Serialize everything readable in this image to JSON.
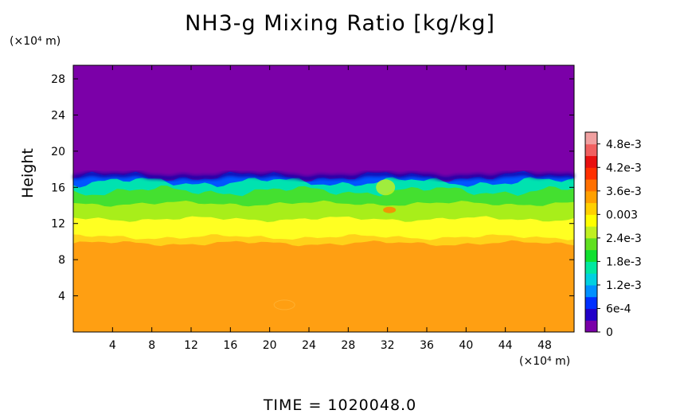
{
  "chart_data": {
    "type": "heatmap",
    "title": "NH3-g Mixing Ratio [kg/kg]",
    "ylabel": "Height",
    "y_unit": "(×10⁴ m)",
    "x_unit": "(×10⁴ m)",
    "x_ticks": [
      4,
      8,
      12,
      16,
      20,
      24,
      28,
      32,
      36,
      40,
      44,
      48
    ],
    "y_ticks": [
      4,
      8,
      12,
      16,
      20,
      24,
      28
    ],
    "xlim": [
      0,
      51
    ],
    "ylim": [
      0,
      29.5
    ],
    "colorbar": {
      "range": [
        0,
        0.0051
      ],
      "labels": [
        "4.8e-3",
        "4.2e-3",
        "3.6e-3",
        "0.003",
        "2.4e-3",
        "1.8e-3",
        "1.2e-3",
        "6e-4",
        "0"
      ],
      "label_values": [
        0.0048,
        0.0042,
        0.0036,
        0.003,
        0.0024,
        0.0018,
        0.0012,
        0.0006,
        0
      ],
      "colors": [
        "#7a00a8",
        "#2200c8",
        "#0030ff",
        "#0090ff",
        "#00d0e0",
        "#00e8a0",
        "#10e030",
        "#60e020",
        "#c0f020",
        "#ffff00",
        "#ffd000",
        "#ffa000",
        "#ff7000",
        "#ff3000",
        "#e81010",
        "#f06060",
        "#f0a0a0"
      ]
    },
    "bands": [
      {
        "from": 0,
        "to": 9.8,
        "value": 0.0039,
        "color": "#ff9f12"
      },
      {
        "from": 9.8,
        "to": 10.5,
        "value": 0.0036,
        "color": "#ffd21a"
      },
      {
        "from": 10.5,
        "to": 12.5,
        "value": 0.0033,
        "color": "#ffff22"
      },
      {
        "from": 12.5,
        "to": 14.2,
        "value": 0.0028,
        "color": "#a8ee1a"
      },
      {
        "from": 14.2,
        "to": 15.6,
        "value": 0.0024,
        "color": "#44e030"
      },
      {
        "from": 15.6,
        "to": 16.6,
        "value": 0.0018,
        "color": "#00e2b0"
      },
      {
        "from": 16.6,
        "to": 17.2,
        "value": 0.0009,
        "color": "#0055ff"
      },
      {
        "from": 17.2,
        "to": 29.5,
        "value": 0.0,
        "color": "#7b00a8"
      }
    ],
    "time_label": "TIME  =  1020048.0"
  }
}
